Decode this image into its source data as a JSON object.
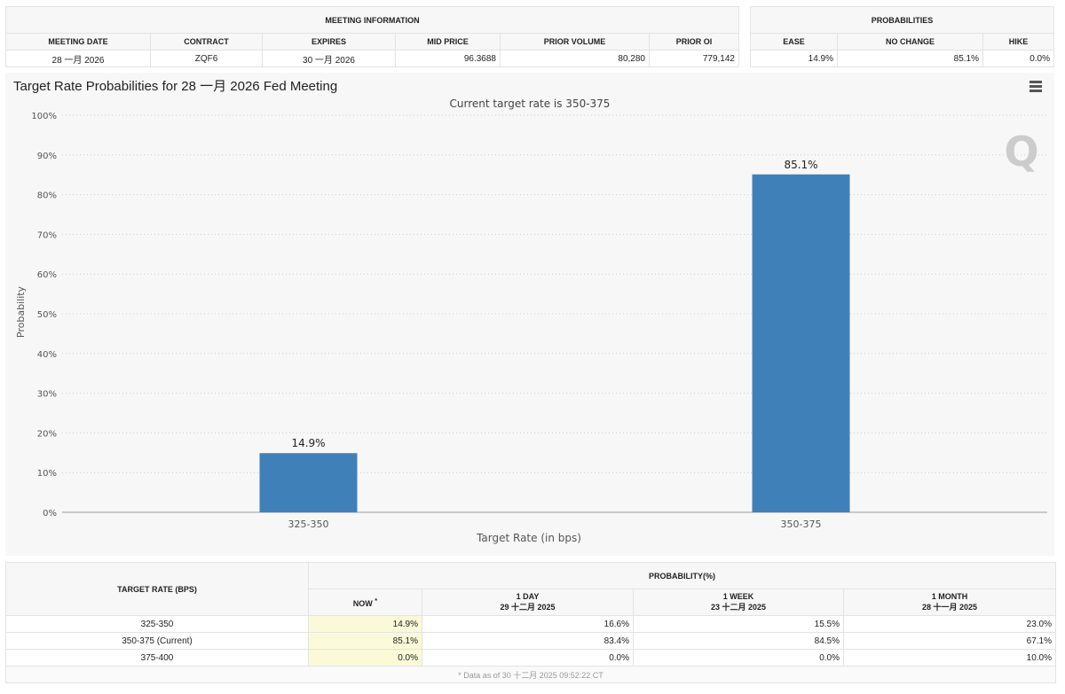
{
  "meeting_info": {
    "title": "MEETING INFORMATION",
    "headers": [
      "MEETING DATE",
      "CONTRACT",
      "EXPIRES",
      "MID PRICE",
      "PRIOR VOLUME",
      "PRIOR OI"
    ],
    "values": [
      "28 一月 2026",
      "ZQF6",
      "30 一月 2026",
      "96.3688",
      "80,280",
      "779,142"
    ]
  },
  "probabilities": {
    "title": "PROBABILITIES",
    "headers": [
      "EASE",
      "NO CHANGE",
      "HIKE"
    ],
    "values": [
      "14.9%",
      "85.1%",
      "0.0%"
    ]
  },
  "chart_data": {
    "type": "bar",
    "title": "Target Rate Probabilities for 28 一月 2026 Fed Meeting",
    "subtitle": "Current target rate is 350-375",
    "categories": [
      "325-350",
      "350-375"
    ],
    "values": [
      14.9,
      85.1
    ],
    "data_labels": [
      "14.9%",
      "85.1%"
    ],
    "xlabel": "Target Rate (in bps)",
    "ylabel": "Probability",
    "ylim": [
      0,
      100
    ],
    "yticks": [
      "0%",
      "10%",
      "20%",
      "30%",
      "40%",
      "50%",
      "60%",
      "70%",
      "80%",
      "90%",
      "100%"
    ],
    "grid": true,
    "bar_color": "#4080b8"
  },
  "prob_table": {
    "col_header": "TARGET RATE (BPS)",
    "group_header": "PROBABILITY(%)",
    "columns": [
      {
        "label": "NOW",
        "sub": ""
      },
      {
        "label": "1 DAY",
        "sub": "29 十二月 2025"
      },
      {
        "label": "1 WEEK",
        "sub": "23 十二月 2025"
      },
      {
        "label": "1 MONTH",
        "sub": "28 十一月 2025"
      }
    ],
    "rows": [
      [
        "325-350",
        "14.9%",
        "16.6%",
        "15.5%",
        "23.0%"
      ],
      [
        "350-375 (Current)",
        "85.1%",
        "83.4%",
        "84.5%",
        "67.1%"
      ],
      [
        "375-400",
        "0.0%",
        "0.0%",
        "0.0%",
        "10.0%"
      ]
    ],
    "footnote": "* Data as of 30 十二月 2025 09:52:22 CT",
    "now_mark": "*"
  }
}
